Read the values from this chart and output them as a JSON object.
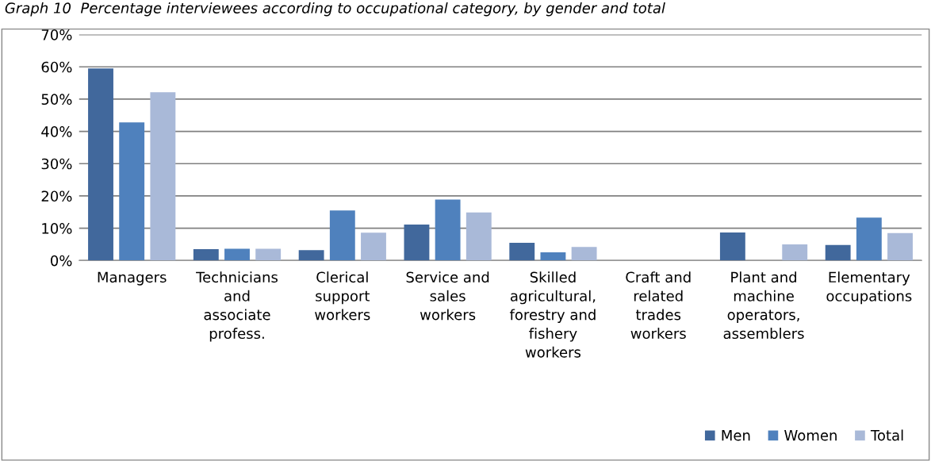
{
  "chart_data": {
    "type": "bar",
    "title": "Graph 10  Percentage interviewees according to occupational category, by gender and total",
    "categories": [
      "Managers",
      "Technicians\nand\nassociate\nprofess.",
      "Clerical\nsupport\nworkers",
      "Service and\nsales\nworkers",
      "Skilled\nagricultural,\nforestry and\nfishery\nworkers",
      "Craft and\nrelated\ntrades\nworkers",
      "Plant and\nmachine\noperators,\nassemblers",
      "Elementary\noccupations"
    ],
    "series": [
      {
        "name": "Men",
        "color": "#41689c",
        "values": [
          59.5,
          3.5,
          3.2,
          11.1,
          5.5,
          0,
          8.7,
          4.8
        ]
      },
      {
        "name": "Women",
        "color": "#4f81bd",
        "values": [
          42.8,
          3.6,
          15.5,
          18.9,
          2.5,
          0,
          0,
          13.3
        ]
      },
      {
        "name": "Total",
        "color": "#a9b9d8",
        "values": [
          52.1,
          3.6,
          8.6,
          14.9,
          4.2,
          0,
          5.0,
          8.5
        ]
      }
    ],
    "ylim": [
      0,
      70
    ],
    "yticks": [
      {
        "value": 0,
        "label": "0%"
      },
      {
        "value": 10,
        "label": "10%"
      },
      {
        "value": 20,
        "label": "20%"
      },
      {
        "value": 30,
        "label": "30%"
      },
      {
        "value": 40,
        "label": "40%"
      },
      {
        "value": 50,
        "label": "50%"
      },
      {
        "value": 60,
        "label": "60%"
      },
      {
        "value": 70,
        "label": "70%"
      }
    ],
    "grid": "y",
    "legend": "bottom right"
  }
}
